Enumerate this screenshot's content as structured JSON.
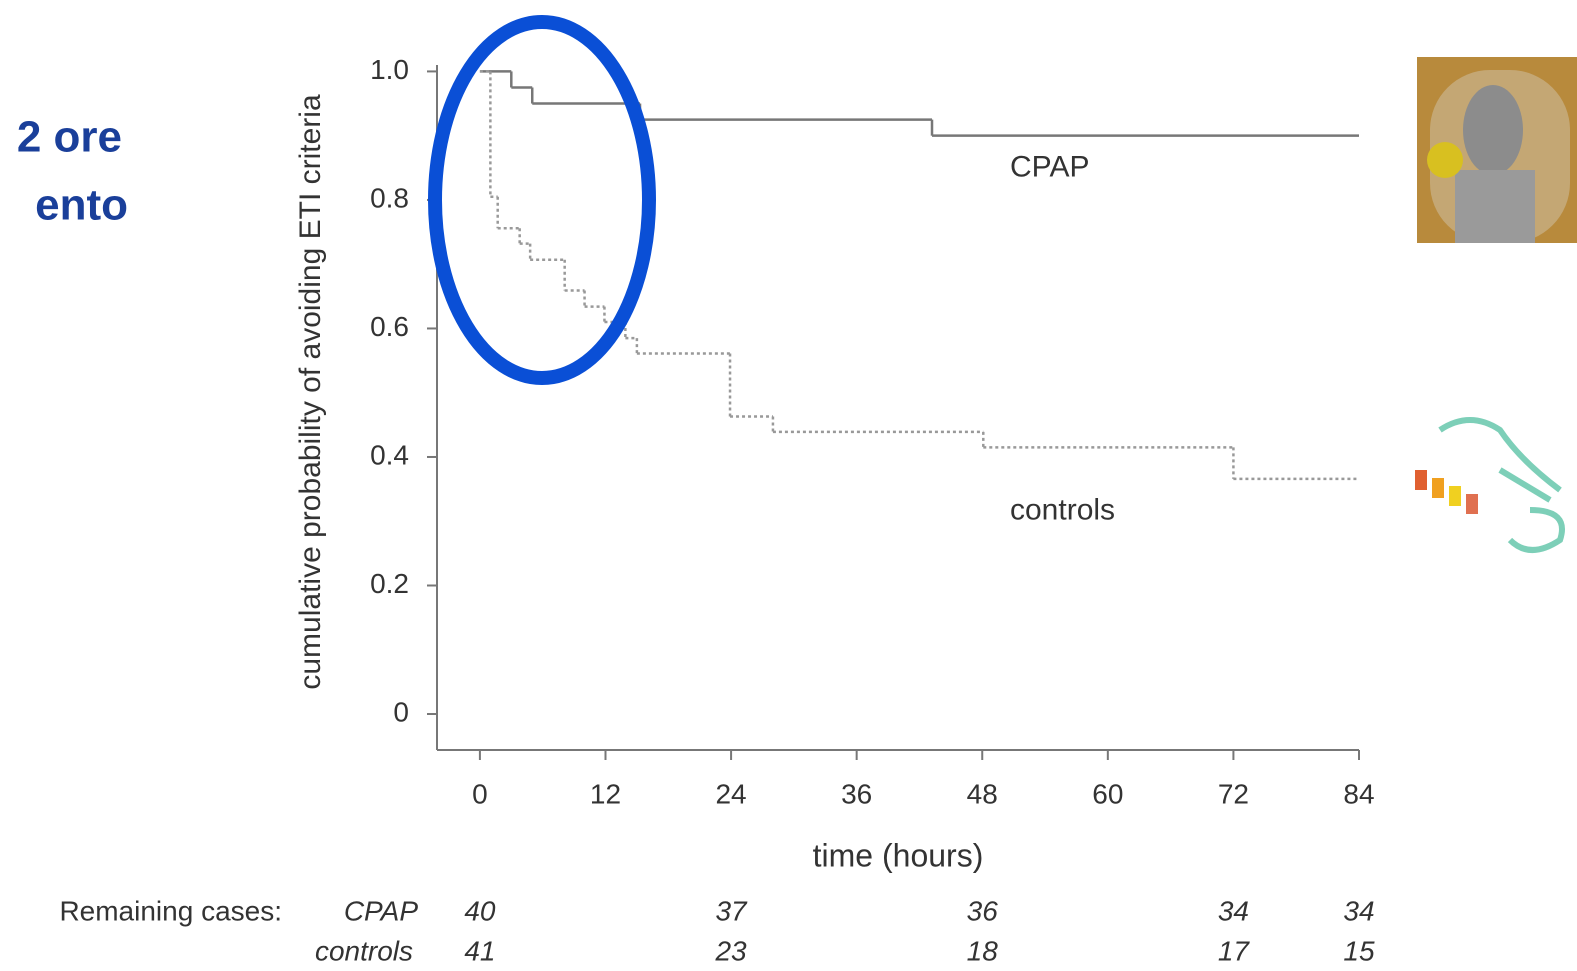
{
  "slide_title": [
    "2 ore",
    "ento"
  ],
  "chart_data": {
    "type": "step",
    "y_label": "cumulative probability of avoiding ETI criteria",
    "x_label": "time (hours)",
    "xlim": [
      -4.1,
      84
    ],
    "ylim": [
      -0.056,
      1.01
    ],
    "xticks": [
      0,
      12,
      24,
      36,
      48,
      60,
      72,
      84
    ],
    "yticks": [
      0,
      0.2,
      0.4,
      0.6,
      0.8,
      {
        "value": 1,
        "label": "1.0"
      }
    ],
    "series": [
      {
        "name": "CPAP",
        "color": "#777777",
        "dash": false,
        "x": [
          0,
          3,
          5,
          15.3,
          43.2
        ],
        "values": [
          1,
          0.975,
          0.95,
          0.925,
          0.9
        ]
      },
      {
        "name": "controls",
        "color": "#999999",
        "dash": true,
        "x": [
          0,
          1,
          1.7,
          3.8,
          4.8,
          8.1,
          10,
          11.9,
          13.9,
          15,
          23.9,
          28,
          48.1,
          72
        ],
        "values": [
          1,
          0.805,
          0.756,
          0.732,
          0.707,
          0.659,
          0.634,
          0.61,
          0.585,
          0.561,
          0.463,
          0.439,
          0.415,
          0.366
        ]
      }
    ]
  },
  "remaining_cases": {
    "label": "Remaining cases:",
    "rows": [
      {
        "name": "CPAP",
        "counts": [
          40,
          37,
          36,
          34,
          34
        ]
      },
      {
        "name": "controls",
        "counts": [
          41,
          23,
          18,
          17,
          15
        ]
      }
    ]
  }
}
